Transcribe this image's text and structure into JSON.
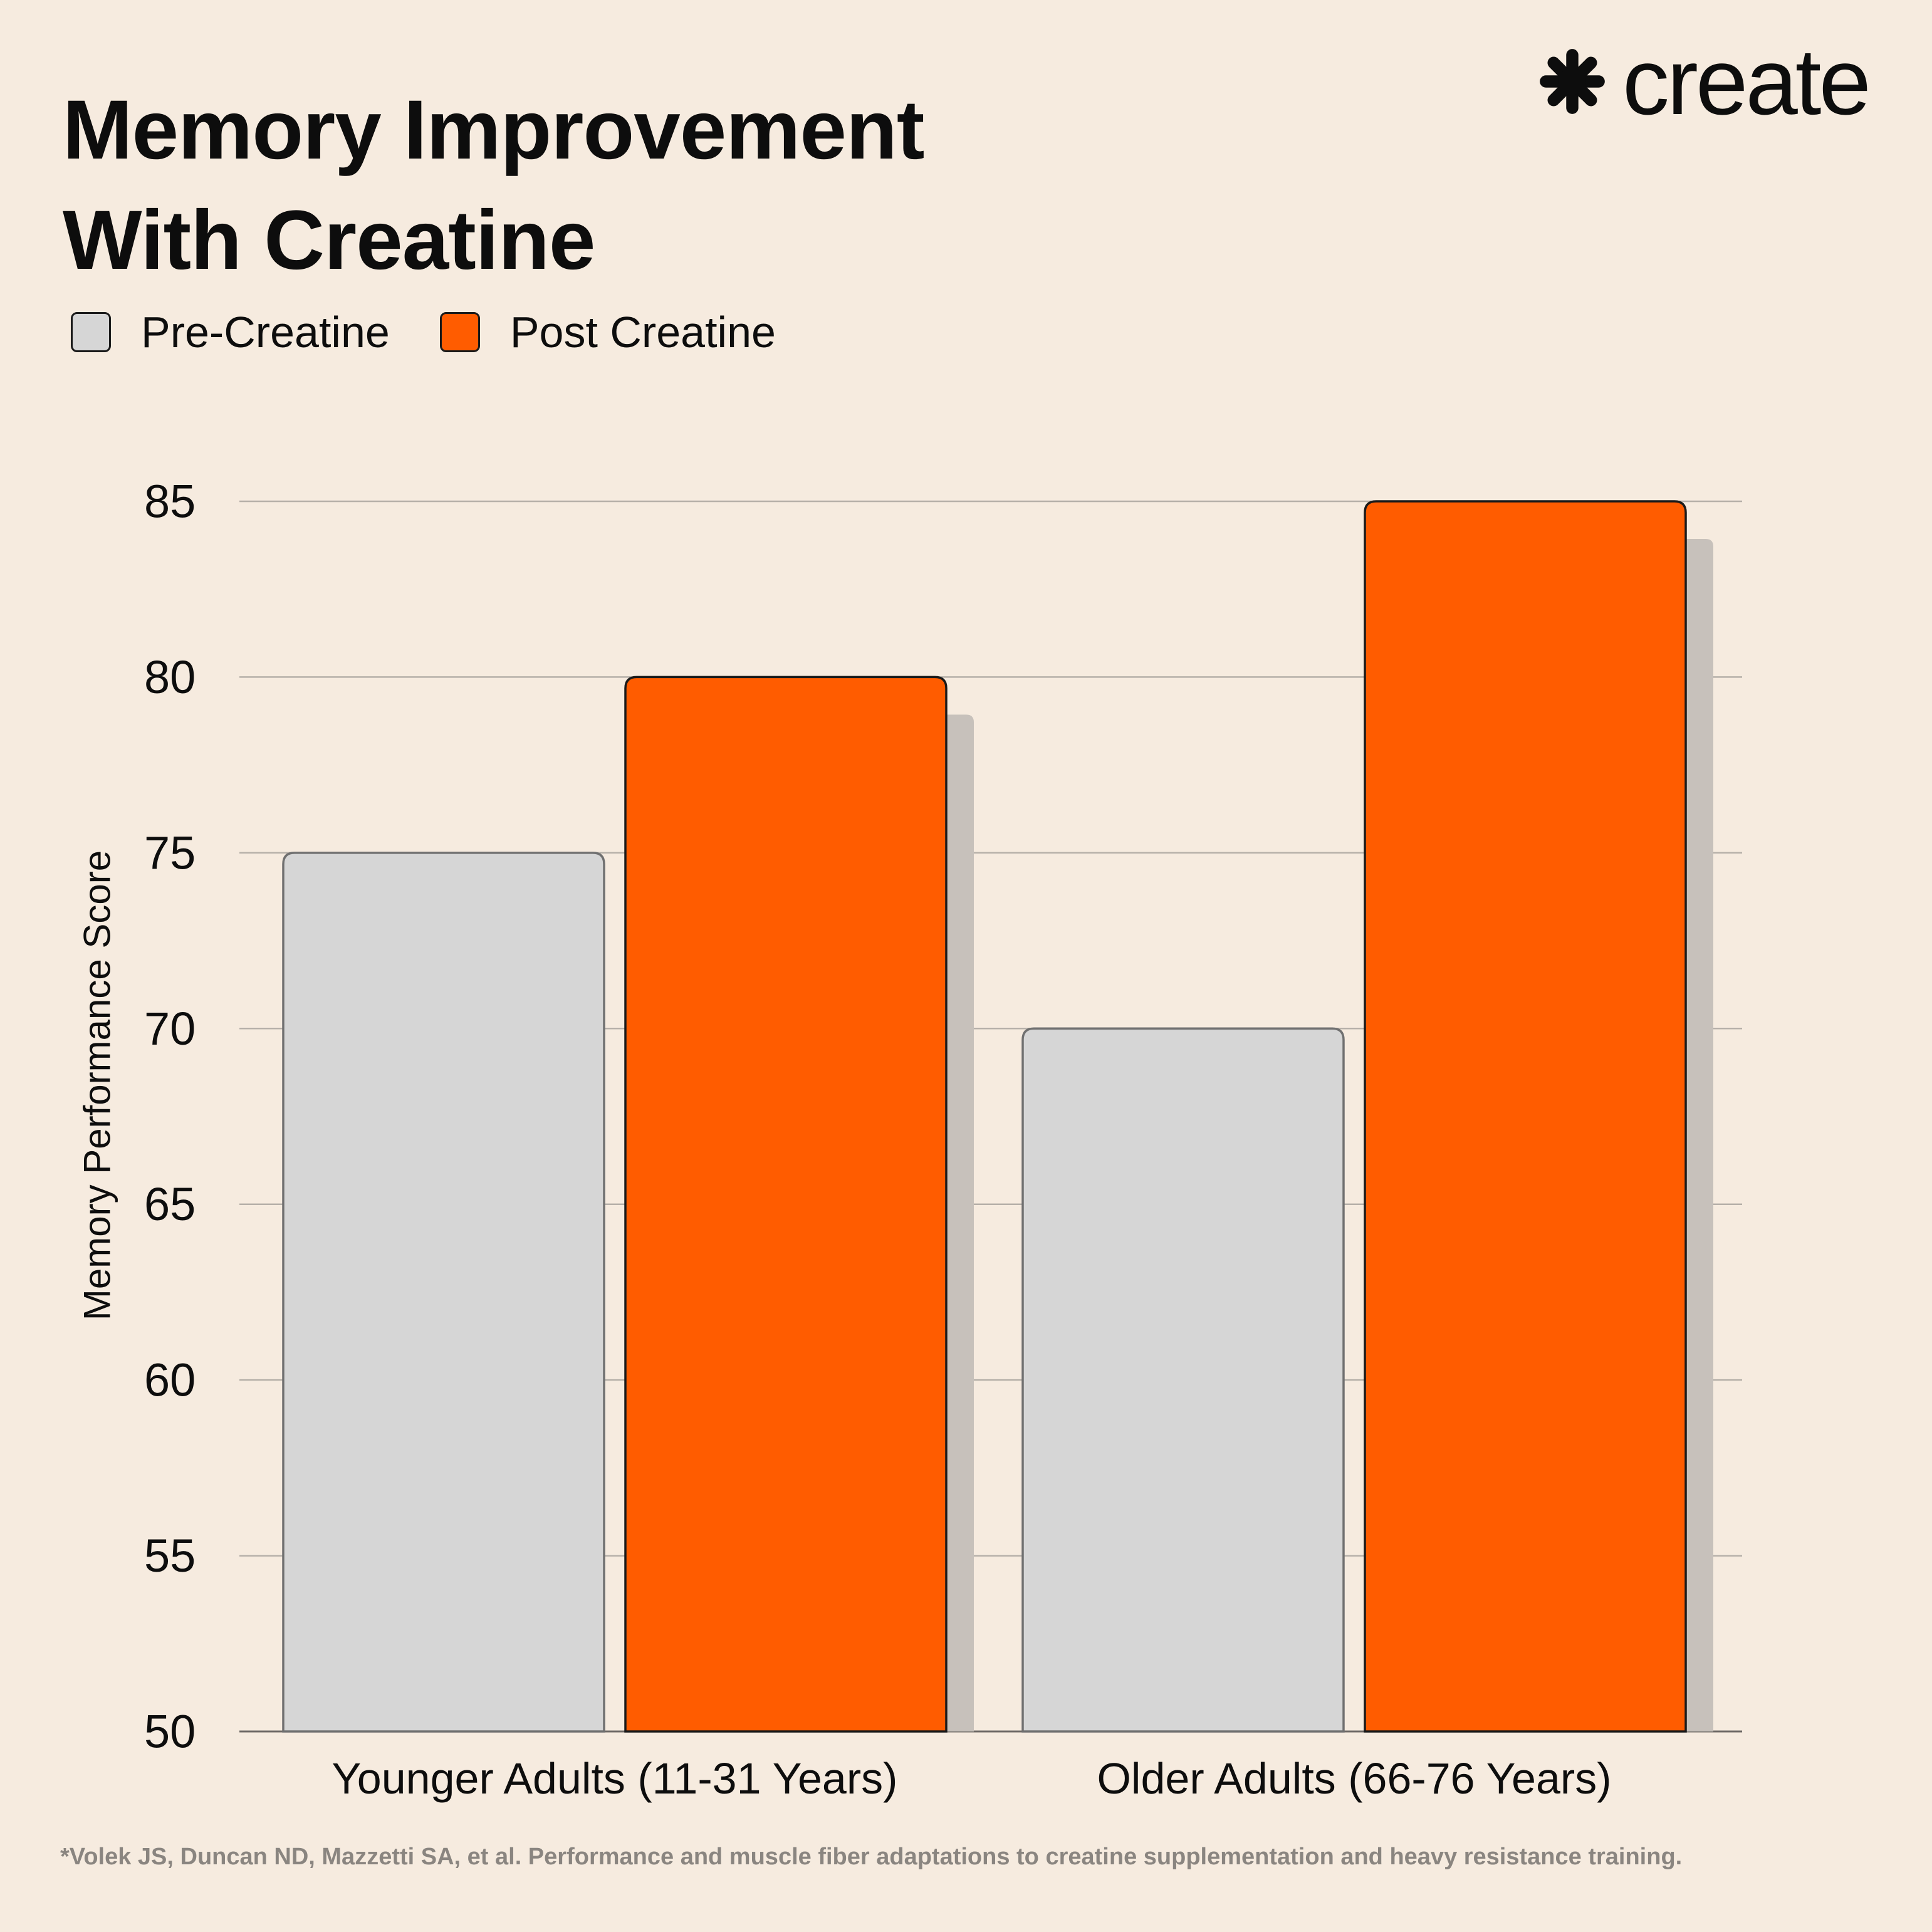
{
  "title_lines": [
    "Memory Improvement",
    "With Creatine"
  ],
  "brand": {
    "name": "create",
    "logo_icon": "asterisk-burst-icon"
  },
  "colors": {
    "background": "#f6ebdf",
    "pre": "#d6d6d6",
    "post": "#ff5c00",
    "text": "#0d0d0d",
    "footnote": "#8a8580"
  },
  "chart_data": {
    "type": "bar",
    "ylabel": "Memory Performance Score",
    "xlabel": "",
    "ylim": [
      50,
      85
    ],
    "yticks": [
      50,
      55,
      60,
      65,
      70,
      75,
      80,
      85
    ],
    "grid": true,
    "legend_placement": "top-left",
    "categories": [
      "Younger Adults (11-31 Years)",
      "Older Adults (66-76 Years)"
    ],
    "series": [
      {
        "name": "Pre-Creatine",
        "values": [
          75,
          70
        ],
        "color": "#d6d6d6"
      },
      {
        "name": "Post Creatine",
        "values": [
          80,
          85
        ],
        "color": "#ff5c00"
      }
    ]
  },
  "footnote": "*Volek JS, Duncan ND, Mazzetti SA, et al. Performance and muscle fiber adaptations to creatine supplementation and heavy resistance training."
}
